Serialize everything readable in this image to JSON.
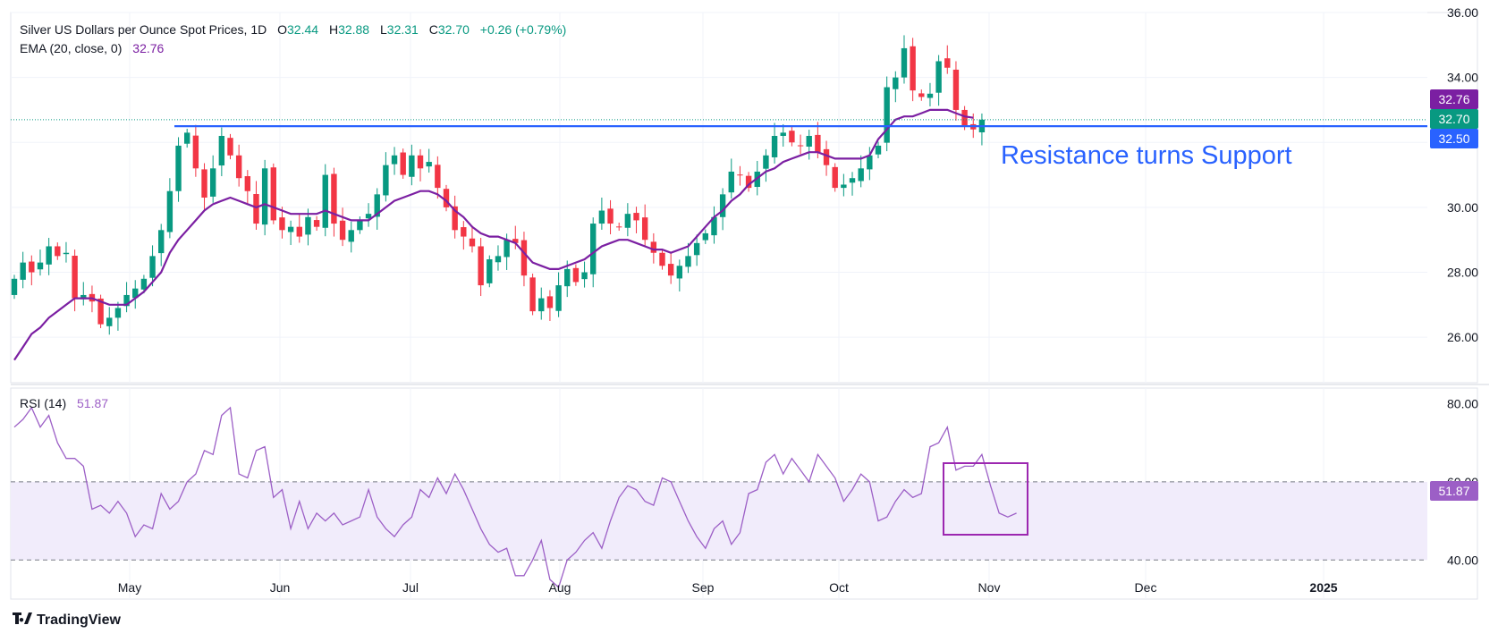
{
  "header": {
    "symbol_title": "Silver US Dollars per Ounce Spot Prices, 1D",
    "o_label": "O",
    "o_value": "32.44",
    "h_label": "H",
    "h_value": "32.88",
    "l_label": "L",
    "l_value": "32.31",
    "c_label": "C",
    "c_value": "32.70",
    "change": "+0.26 (+0.79%)",
    "ema_label": "EMA (20, close, 0)",
    "ema_value": "32.76",
    "rsi_label": "RSI (14)",
    "rsi_value": "51.87"
  },
  "annotation": {
    "text": "Resistance turns Support"
  },
  "price_badges": {
    "ema": "32.76",
    "close": "32.70",
    "support": "32.50",
    "rsi": "51.87"
  },
  "branding": {
    "logo": "TradingView"
  },
  "colors": {
    "up": "#089981",
    "down": "#f23645",
    "ema": "#7b1fa2",
    "line": "#2962ff",
    "rsi": "#9c5fc6",
    "band": "#f1ecfb"
  },
  "chart_data": {
    "type": "candlestick",
    "price_axis": {
      "ticks": [
        26,
        28,
        30,
        32,
        34,
        36
      ],
      "tick_labels": [
        "26.00",
        "28.00",
        "30.00",
        "32.00",
        "34.00",
        "36.00"
      ],
      "range": [
        24.6,
        36.0
      ]
    },
    "rsi_axis": {
      "ticks": [
        40,
        60,
        80
      ],
      "tick_labels": [
        "40.00",
        "60.00",
        "80.00"
      ],
      "band": [
        40,
        60
      ]
    },
    "x_axis": {
      "tick_labels": [
        "May",
        "Jun",
        "Jul",
        "Aug",
        "Sep",
        "Oct",
        "Nov",
        "Dec",
        "2025"
      ]
    },
    "horizontal_line": {
      "value": 32.5,
      "label": "32.50"
    },
    "last_close": 32.7,
    "ema_last": 32.76,
    "rsi_last": 51.87,
    "close_path": [
      27.8,
      28.3,
      28.0,
      28.3,
      28.8,
      28.5,
      28.6,
      27.2,
      27.3,
      27.1,
      26.4,
      26.6,
      26.9,
      27.3,
      27.5,
      27.8,
      28.5,
      29.3,
      30.5,
      31.9,
      32.3,
      31.2,
      30.3,
      31.2,
      32.2,
      31.6,
      30.9,
      30.5,
      29.5,
      31.2,
      29.6,
      29.3,
      29.4,
      29.1,
      29.7,
      29.4,
      31.0,
      29.5,
      29.0,
      29.3,
      29.6,
      29.8,
      30.4,
      31.3,
      31.6,
      31.0,
      31.6,
      31.2,
      31.4,
      30.6,
      30.0,
      29.3,
      29.1,
      28.8,
      27.6,
      28.4,
      28.5,
      29.0,
      28.9,
      27.9,
      26.8,
      27.2,
      26.9,
      27.6,
      28.1,
      27.7,
      28.0,
      29.5,
      29.9,
      29.5,
      29.4,
      29.8,
      29.6,
      29.0,
      28.6,
      28.2,
      27.9,
      28.2,
      28.5,
      28.9,
      29.2,
      29.7,
      30.4,
      31.1,
      31.0,
      30.6,
      31.1,
      31.6,
      32.2,
      32.3,
      32.0,
      31.9,
      32.2,
      31.7,
      31.3,
      30.6,
      30.7,
      30.9,
      31.2,
      31.6,
      31.9,
      33.7,
      34.0,
      34.9,
      33.6,
      33.4,
      33.5,
      34.5,
      34.3,
      33.0,
      32.5,
      32.4,
      32.7
    ],
    "ema_path": [
      25.3,
      25.7,
      26.1,
      26.3,
      26.6,
      26.8,
      27.0,
      27.2,
      27.2,
      27.2,
      27.1,
      27.0,
      27.0,
      27.0,
      27.2,
      27.4,
      27.7,
      28.0,
      28.6,
      29.0,
      29.3,
      29.6,
      29.9,
      30.1,
      30.2,
      30.3,
      30.2,
      30.1,
      30.0,
      30.1,
      30.0,
      29.9,
      29.8,
      29.8,
      29.8,
      29.8,
      29.9,
      29.8,
      29.7,
      29.6,
      29.6,
      29.6,
      29.8,
      30.0,
      30.2,
      30.3,
      30.4,
      30.5,
      30.5,
      30.4,
      30.2,
      29.9,
      29.7,
      29.4,
      29.2,
      29.1,
      29.1,
      29.0,
      28.9,
      28.6,
      28.3,
      28.2,
      28.1,
      28.1,
      28.2,
      28.3,
      28.4,
      28.6,
      28.8,
      28.9,
      29.0,
      29.0,
      28.9,
      28.8,
      28.7,
      28.7,
      28.6,
      28.7,
      28.8,
      29.1,
      29.4,
      29.7,
      29.9,
      30.2,
      30.4,
      30.7,
      30.9,
      31.1,
      31.2,
      31.4,
      31.5,
      31.6,
      31.7,
      31.7,
      31.6,
      31.5,
      31.5,
      31.5,
      31.5,
      31.6,
      32.1,
      32.4,
      32.7,
      32.8,
      32.8,
      32.9,
      33.0,
      33.0,
      33.0,
      32.9,
      32.8,
      32.76
    ],
    "rsi_path": [
      74,
      76,
      79,
      74,
      77,
      70,
      66,
      66,
      64,
      53,
      54,
      52,
      55,
      52,
      46,
      49,
      48,
      57,
      53,
      55,
      60,
      62,
      68,
      67,
      77,
      79,
      62,
      61,
      68,
      69,
      56,
      58,
      48,
      55,
      48,
      52,
      50,
      52,
      49,
      50,
      51,
      58,
      51,
      48,
      46,
      49,
      51,
      58,
      56,
      61,
      57,
      62,
      58,
      53,
      48,
      44,
      42,
      43,
      36,
      36,
      40,
      45,
      35,
      33,
      40,
      42,
      45,
      47,
      43,
      50,
      56,
      59,
      58,
      55,
      54,
      61,
      60,
      55,
      50,
      46,
      43,
      48,
      50,
      44,
      47,
      57,
      58,
      65,
      67,
      62,
      66,
      63,
      60,
      67,
      64,
      61,
      55,
      58,
      62,
      60,
      50,
      51,
      55,
      58,
      56,
      57,
      69,
      70,
      74,
      63,
      64,
      64,
      67,
      59,
      52,
      51,
      52
    ]
  }
}
